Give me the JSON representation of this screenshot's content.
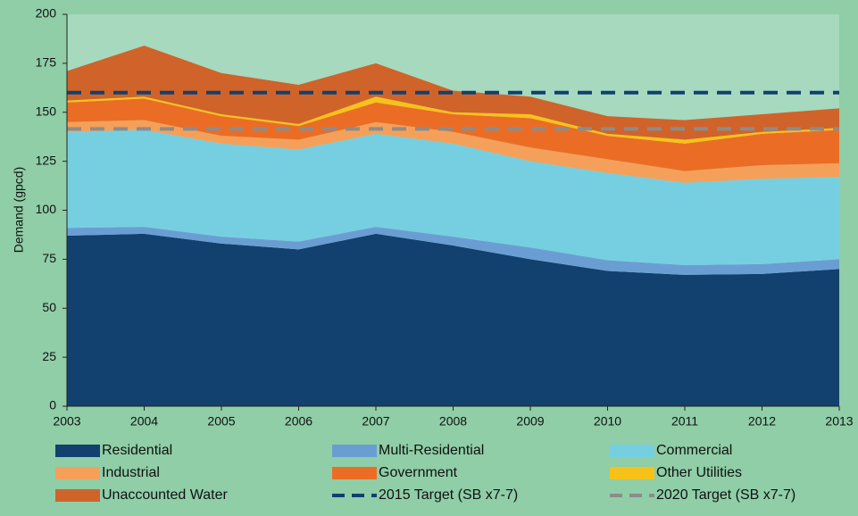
{
  "chart_data": {
    "type": "stacked-area",
    "y_label": "Demand (gpcd)",
    "categories": [
      "2003",
      "2004",
      "2005",
      "2006",
      "2007",
      "2008",
      "2009",
      "2010",
      "2011",
      "2012",
      "2013"
    ],
    "series": [
      {
        "name": "Residential",
        "color": "#12406f",
        "values": [
          87,
          88,
          83,
          80,
          88,
          82,
          75,
          69,
          67,
          67.5,
          70
        ]
      },
      {
        "name": "Multi-Residential",
        "color": "#6a9ed3",
        "values": [
          4,
          3.5,
          3.5,
          4,
          3.5,
          4.5,
          6,
          5.5,
          5,
          5,
          5
        ]
      },
      {
        "name": "Commercial",
        "color": "#76cfe0",
        "values": [
          49,
          49.5,
          47.5,
          47,
          47.5,
          47.5,
          44,
          44.5,
          42,
          43.5,
          42
        ]
      },
      {
        "name": "Industrial",
        "color": "#f5a05a",
        "values": [
          5,
          5,
          4,
          5,
          6,
          6,
          7,
          7,
          6,
          7,
          7
        ]
      },
      {
        "name": "Government",
        "color": "#eb6d25",
        "values": [
          10,
          11,
          10,
          7,
          10,
          9,
          15,
          12,
          14,
          16,
          17
        ]
      },
      {
        "name": "Other Utilities",
        "color": "#f6c21a",
        "values": [
          1,
          1,
          1,
          1,
          3,
          1,
          2,
          1,
          2,
          1,
          1
        ]
      },
      {
        "name": "Unaccounted Water",
        "color": "#d0632a",
        "values": [
          15,
          26,
          21,
          20,
          17,
          11,
          9,
          9,
          10,
          9,
          10
        ]
      }
    ],
    "targets": [
      {
        "name": "2015 Target (SB x7-7)",
        "color": "#12406f",
        "value": 160
      },
      {
        "name": "2020 Target (SB x7-7)",
        "color": "#8c8c8c",
        "value": 141.5
      }
    ],
    "ylim": [
      0,
      200
    ],
    "yticks": [
      0,
      25,
      50,
      75,
      100,
      125,
      150,
      175,
      200
    ]
  }
}
